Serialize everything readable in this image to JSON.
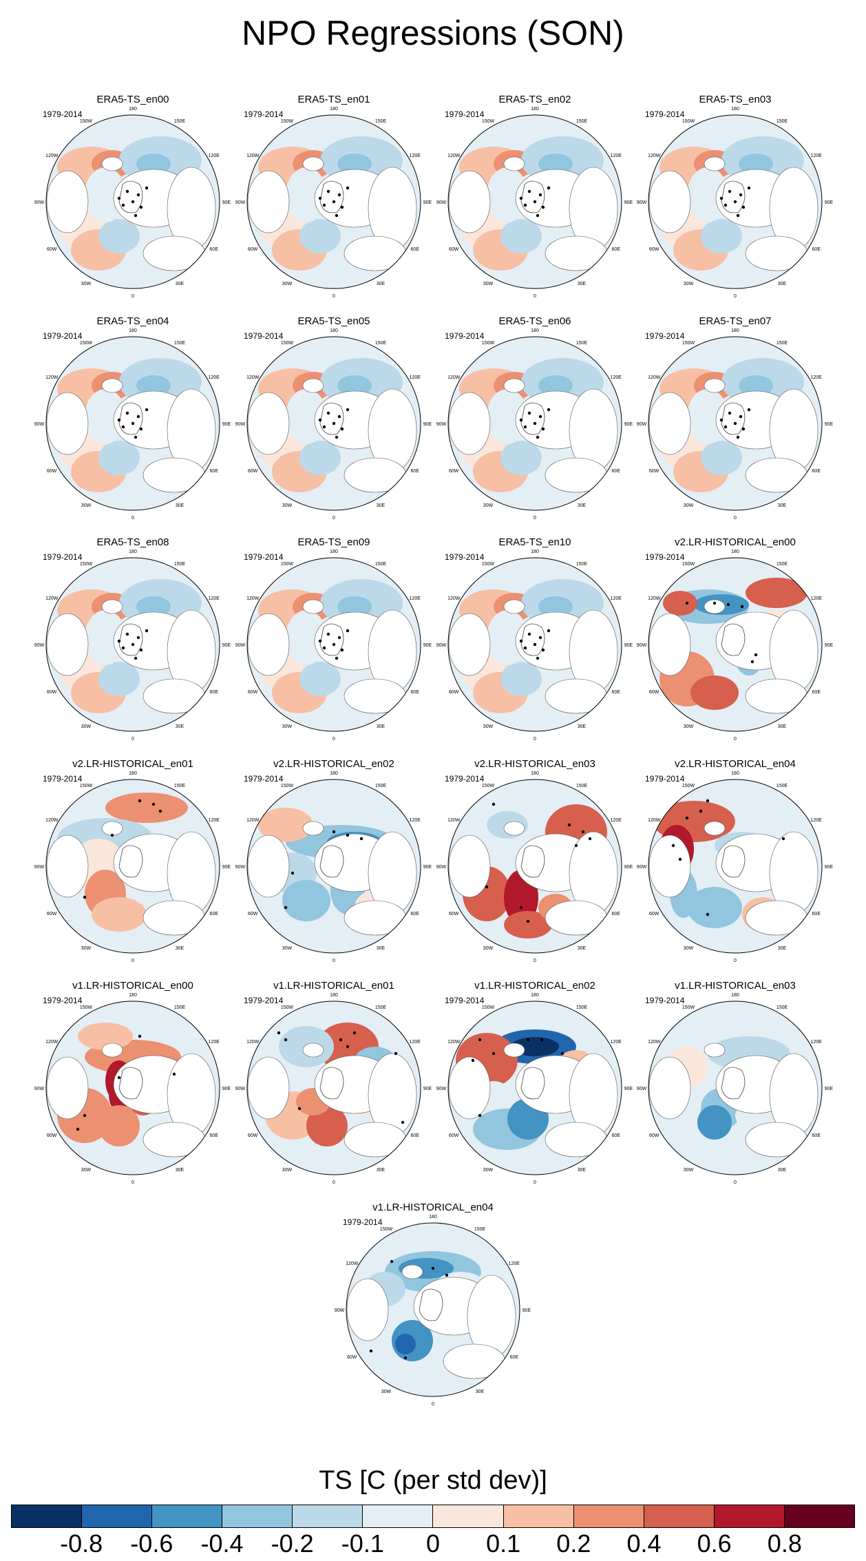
{
  "figure": {
    "title": "NPO Regressions (SON)",
    "period_label": "1979-2014",
    "lon_labels": [
      "180",
      "150E",
      "120E",
      "90E",
      "60E",
      "30E",
      "0",
      "30W",
      "60W",
      "90W",
      "120W",
      "150W"
    ]
  },
  "panels": [
    {
      "title": "ERA5-TS_en00",
      "pattern": "era"
    },
    {
      "title": "ERA5-TS_en01",
      "pattern": "era"
    },
    {
      "title": "ERA5-TS_en02",
      "pattern": "era"
    },
    {
      "title": "ERA5-TS_en03",
      "pattern": "era"
    },
    {
      "title": "ERA5-TS_en04",
      "pattern": "era"
    },
    {
      "title": "ERA5-TS_en05",
      "pattern": "era"
    },
    {
      "title": "ERA5-TS_en06",
      "pattern": "era"
    },
    {
      "title": "ERA5-TS_en07",
      "pattern": "era"
    },
    {
      "title": "ERA5-TS_en08",
      "pattern": "era"
    },
    {
      "title": "ERA5-TS_en09",
      "pattern": "era"
    },
    {
      "title": "ERA5-TS_en10",
      "pattern": "era"
    },
    {
      "title": "v2.LR-HISTORICAL_en00",
      "pattern": "v2a"
    },
    {
      "title": "v2.LR-HISTORICAL_en01",
      "pattern": "v2b"
    },
    {
      "title": "v2.LR-HISTORICAL_en02",
      "pattern": "v2c"
    },
    {
      "title": "v2.LR-HISTORICAL_en03",
      "pattern": "v2d"
    },
    {
      "title": "v2.LR-HISTORICAL_en04",
      "pattern": "v2e"
    },
    {
      "title": "v1.LR-HISTORICAL_en00",
      "pattern": "v1a"
    },
    {
      "title": "v1.LR-HISTORICAL_en01",
      "pattern": "v1b"
    },
    {
      "title": "v1.LR-HISTORICAL_en02",
      "pattern": "v1c"
    },
    {
      "title": "v1.LR-HISTORICAL_en03",
      "pattern": "v1d"
    },
    {
      "title": "v1.LR-HISTORICAL_en04",
      "pattern": "v1e"
    }
  ],
  "colorbar": {
    "title": "TS [C (per std dev)]",
    "colors": [
      "#0a3163",
      "#2166ac",
      "#4393c3",
      "#92c5de",
      "#bcd9ea",
      "#e4eef5",
      "#fbe6dc",
      "#f7c0a4",
      "#ec9072",
      "#d6604d",
      "#b2182b",
      "#67001f"
    ],
    "tick_labels": [
      "-0.8",
      "-0.6",
      "-0.4",
      "-0.2",
      "-0.1",
      "0",
      "0.1",
      "0.2",
      "0.4",
      "0.6",
      "0.8"
    ]
  }
}
